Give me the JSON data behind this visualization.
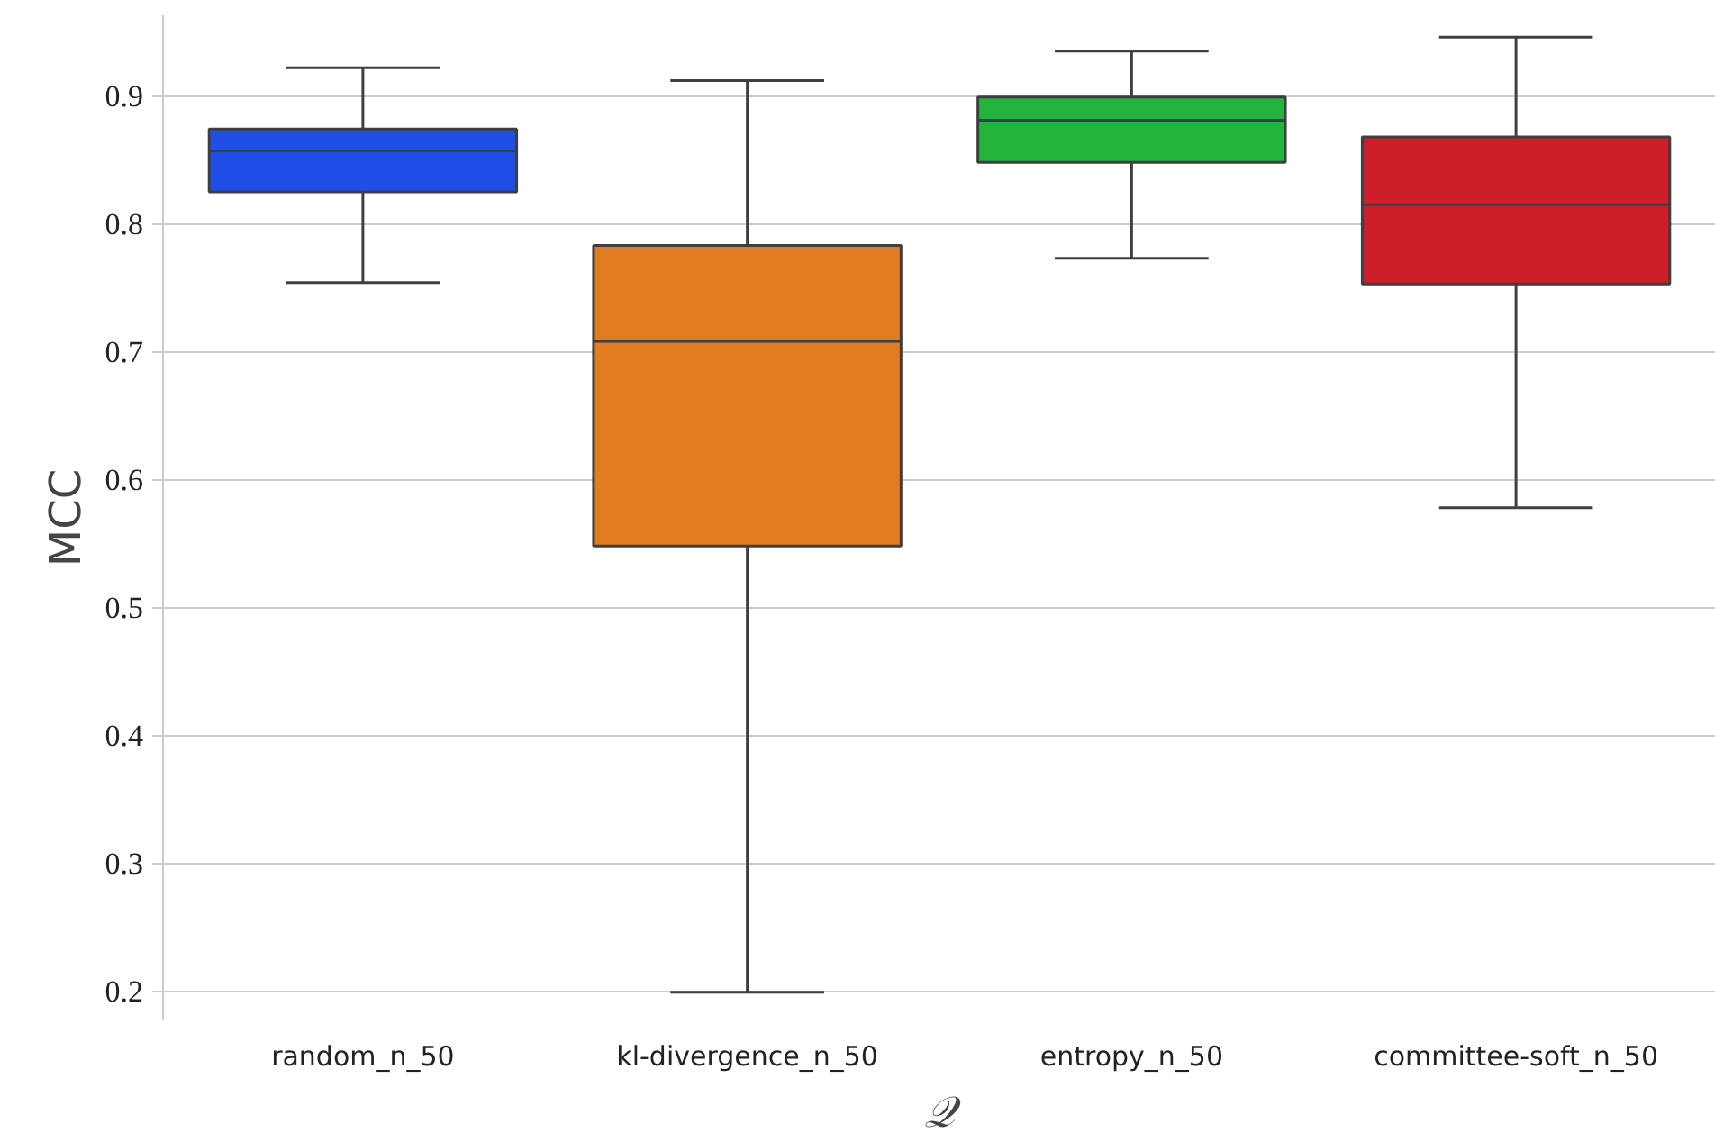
{
  "chart_data": {
    "type": "box",
    "xlabel": "𝒬",
    "ylabel": "MCC",
    "categories": [
      "random_n_50",
      "kl-divergence_n_50",
      "entropy_n_50",
      "committee-soft_n_50"
    ],
    "colors": [
      "#1f4fe8",
      "#e07c22",
      "#22b43c",
      "#cc1f2a"
    ],
    "boxes": [
      {
        "low": 0.754,
        "q1": 0.825,
        "median": 0.857,
        "q3": 0.874,
        "high": 0.922
      },
      {
        "low": 0.199,
        "q1": 0.548,
        "median": 0.708,
        "q3": 0.783,
        "high": 0.912
      },
      {
        "low": 0.773,
        "q1": 0.848,
        "median": 0.881,
        "q3": 0.899,
        "high": 0.935
      },
      {
        "low": 0.578,
        "q1": 0.753,
        "median": 0.815,
        "q3": 0.868,
        "high": 0.946
      }
    ],
    "ylim": [
      0.177,
      0.963
    ],
    "yticks": [
      0.2,
      0.3,
      0.4,
      0.5,
      0.6,
      0.7,
      0.8,
      0.9
    ],
    "grid": "y"
  }
}
